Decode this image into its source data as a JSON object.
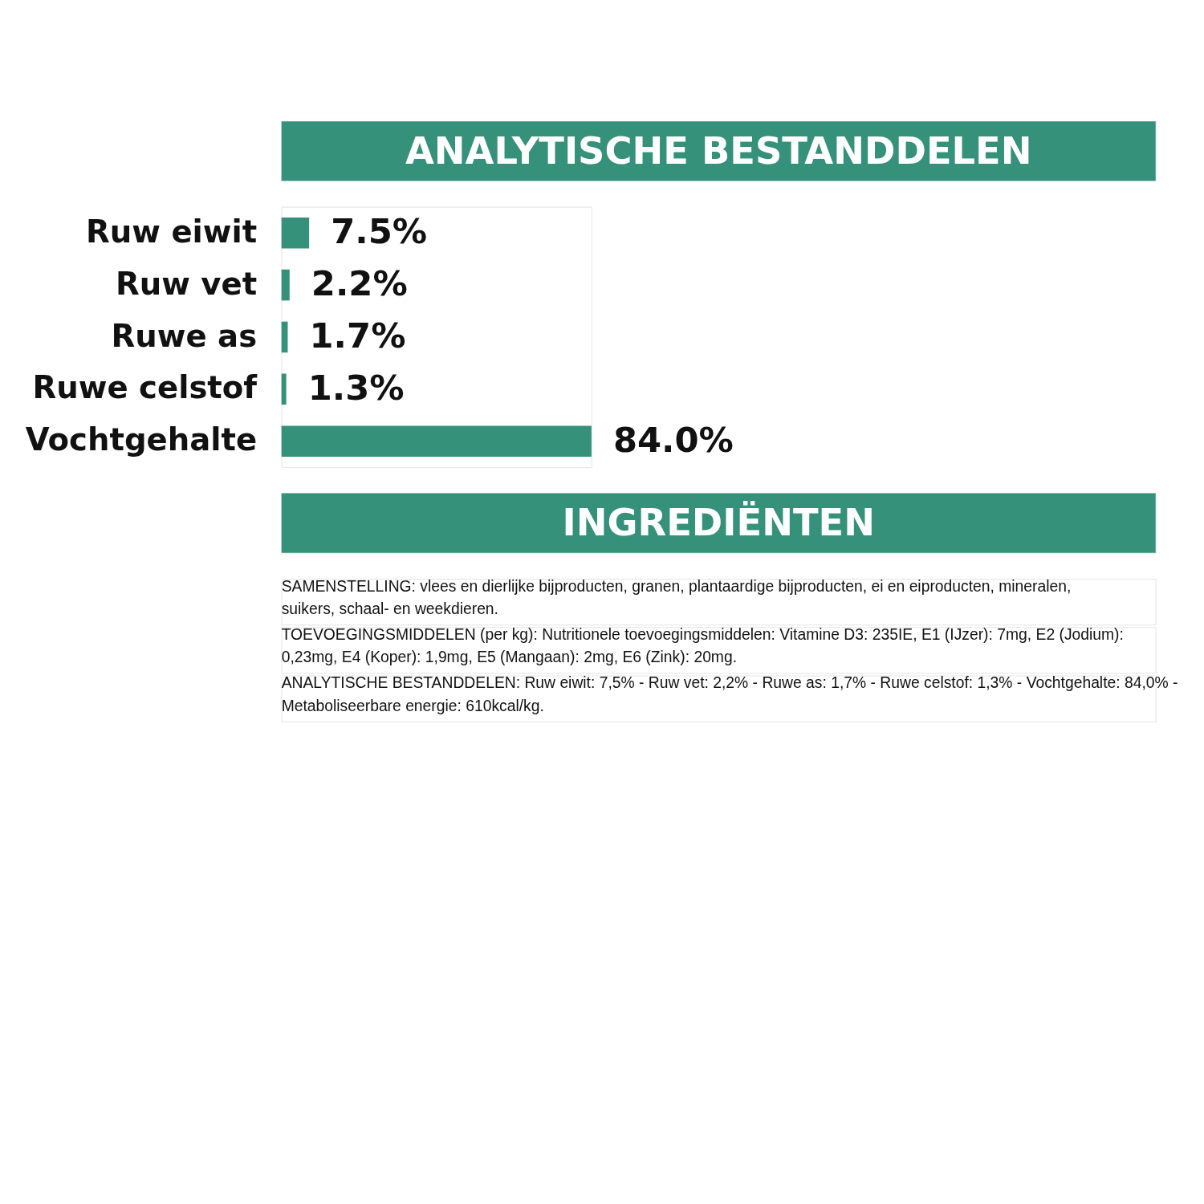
{
  "chart_data": {
    "type": "bar",
    "orientation": "horizontal",
    "title": "ANALYTISCHE BESTANDDELEN",
    "color": "#35917a",
    "categories": [
      "Ruw eiwit",
      "Ruw vet",
      "Ruwe as",
      "Ruwe celstof",
      "Vochtgehalte"
    ],
    "values": [
      7.5,
      2.2,
      1.7,
      1.3,
      84.0
    ],
    "value_labels": [
      "7.5%",
      "2.2%",
      "1.7%",
      "1.3%",
      "84.0%"
    ],
    "annotations": [
      "INGREDIËNTEN",
      "SAMENSTELLING: vlees en dierlijke bijproducten, granen, plantaardige bijproducten, ei en eiproducten, mineralen, suikers, schaal- en weekdieren.",
      "TOEVOEGINGSMIDDELEN (per kg): Nutritionele toevoegingsmiddelen: Vitamine D3: 235IE, E1 (IJzer): 7mg, E2 (Jodium): 0,23mg, E4 (Koper): 1,9mg, E5 (Mangaan): 2mg, E6 (Zink): 20mg.",
      "ANALYTISCHE BESTANDDELEN: Ruw eiwit: 7,5% - Ruw vet: 2,2% - Ruwe as: 1,7% - Ruwe celstof: 1,3% - Vochtgehalte: 84,0% - Metaboliseerbare energie: 610kcal/kg."
    ]
  }
}
